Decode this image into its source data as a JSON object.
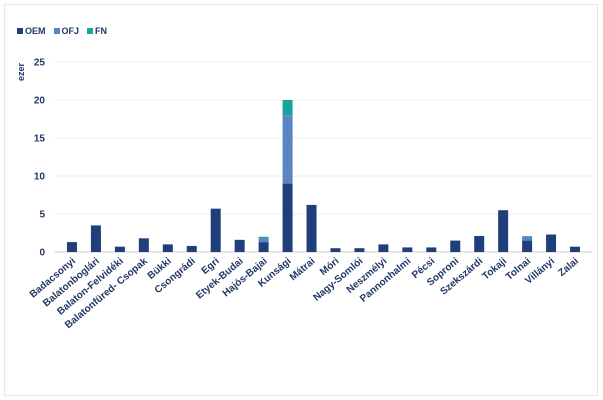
{
  "chart_data": {
    "type": "bar",
    "stacked": true,
    "ylabel": "ezer",
    "ylim": [
      0,
      25
    ],
    "yticks": [
      0,
      5,
      10,
      15,
      20,
      25
    ],
    "grid": true,
    "legend_position": "top-left",
    "categories": [
      "Badacsonyi",
      "Balatonboglári",
      "Balaton-Felvidéki",
      "Balatonfüred- Csopak",
      "Bükki",
      "Csongrádi",
      "Egri",
      "Etyek-Budai",
      "Hajós-Bajai",
      "Kunsági",
      "Mátrai",
      "Móri",
      "Nagy-Somlói",
      "Neszmélyi",
      "Pannonhalmi",
      "Pécsi",
      "Soproni",
      "Szekszárdi",
      "Tokaji",
      "Tolnai",
      "Villányi",
      "Zalai"
    ],
    "series": [
      {
        "name": "OEM",
        "color": "#1f3e7a",
        "values": [
          1.3,
          3.5,
          0.7,
          1.8,
          1.0,
          0.8,
          5.7,
          1.6,
          1.3,
          9.0,
          6.2,
          0.5,
          0.5,
          1.0,
          0.6,
          0.6,
          1.5,
          2.1,
          5.5,
          1.5,
          2.3,
          0.7
        ]
      },
      {
        "name": "OFJ",
        "color": "#5b84c4",
        "values": [
          0,
          0,
          0,
          0,
          0,
          0,
          0,
          0,
          0.5,
          9.0,
          0,
          0,
          0,
          0,
          0,
          0,
          0,
          0,
          0,
          0.5,
          0,
          0
        ]
      },
      {
        "name": "FN",
        "color": "#1aa39a",
        "values": [
          0,
          0,
          0,
          0,
          0,
          0,
          0,
          0,
          0.2,
          2.0,
          0,
          0,
          0,
          0,
          0,
          0,
          0,
          0,
          0,
          0.1,
          0,
          0
        ]
      }
    ]
  }
}
